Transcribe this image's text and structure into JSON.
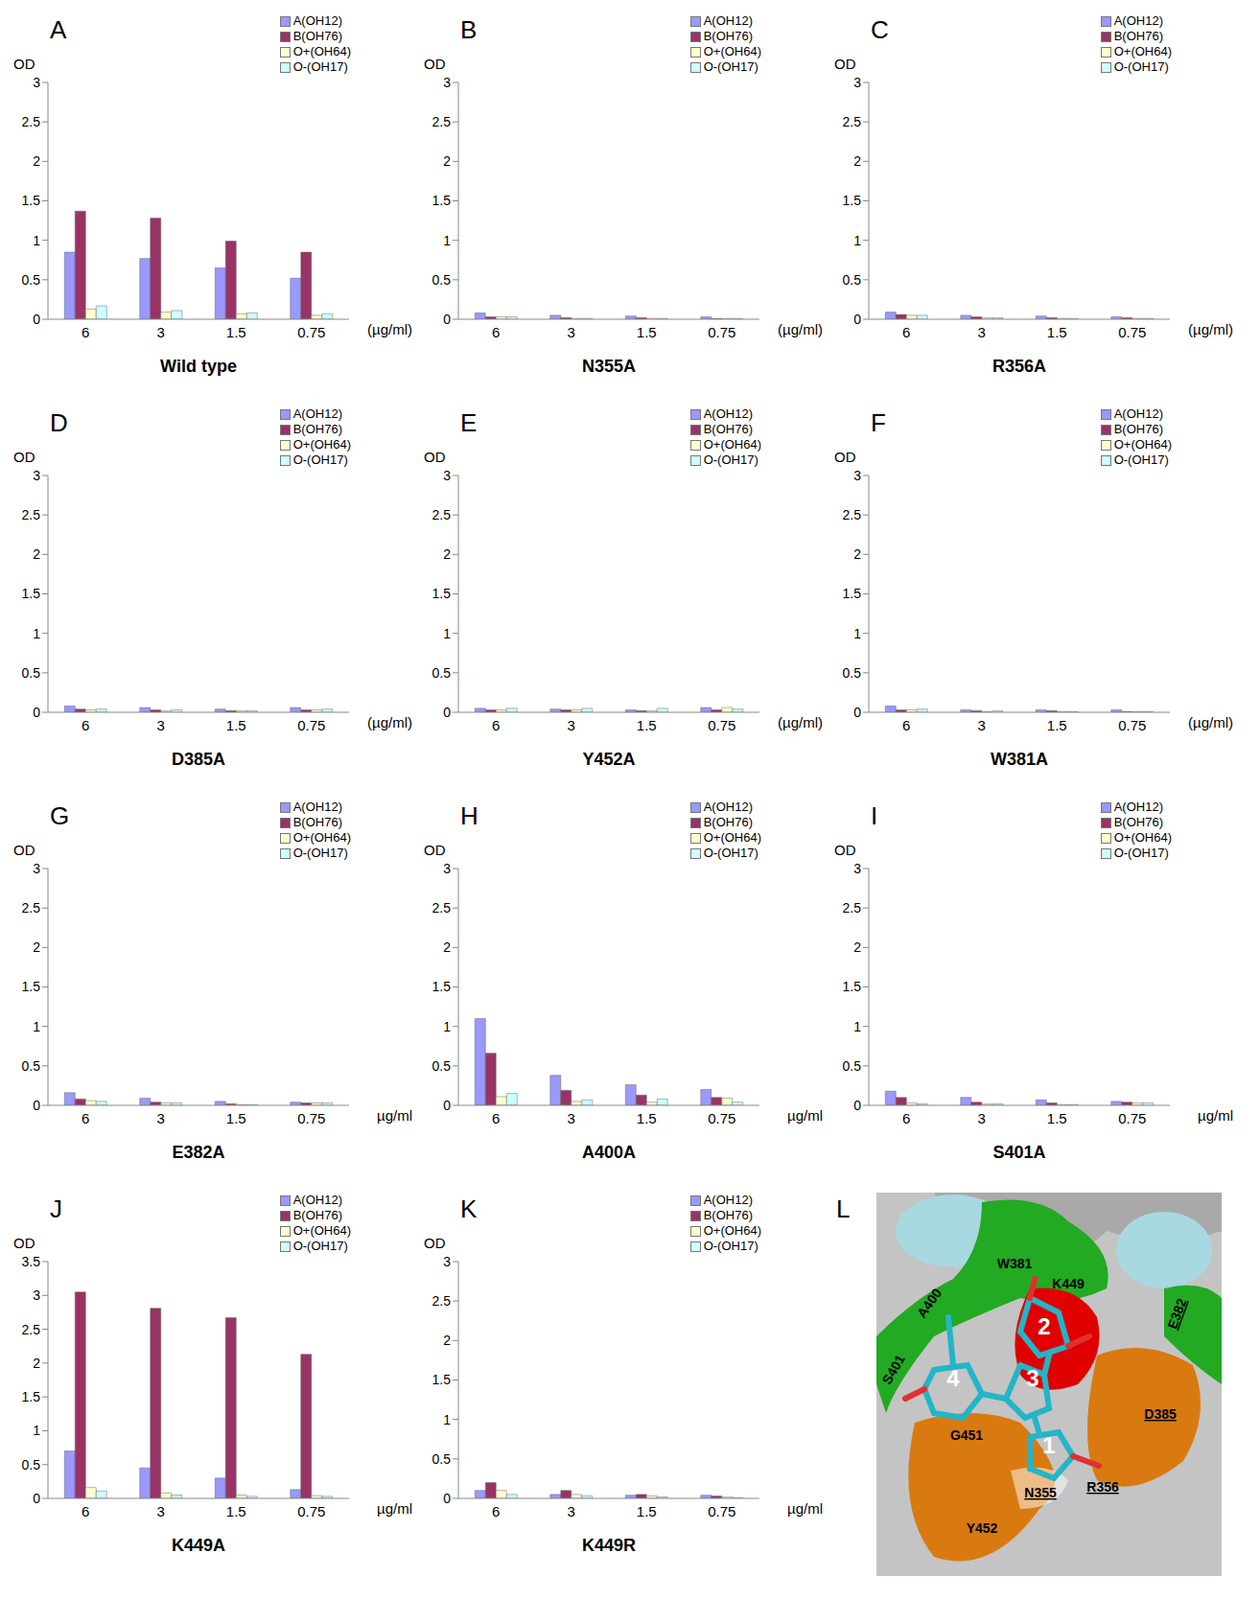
{
  "chart_data": [
    {
      "type": "bar",
      "panel": "A",
      "title": "Wild type",
      "ylabel": "OD",
      "xlabel": "(µg/ml)",
      "categories": [
        "6",
        "3",
        "1.5",
        "0.75"
      ],
      "ylim": [
        0,
        3
      ],
      "yticks": [
        0,
        0.5,
        1,
        1.5,
        2,
        2.5,
        3
      ],
      "legend": "top-right",
      "series": [
        {
          "name": "A(OH12)",
          "color": "#9999ff",
          "values": [
            0.85,
            0.77,
            0.65,
            0.52
          ]
        },
        {
          "name": "B(OH76)",
          "color": "#993366",
          "values": [
            1.37,
            1.28,
            0.99,
            0.85
          ]
        },
        {
          "name": "O+(OH64)",
          "color": "#ffffcc",
          "values": [
            0.13,
            0.09,
            0.07,
            0.05
          ]
        },
        {
          "name": "O-(OH17)",
          "color": "#ccffff",
          "values": [
            0.17,
            0.11,
            0.08,
            0.07
          ]
        }
      ]
    },
    {
      "type": "bar",
      "panel": "B",
      "title": "N355A",
      "ylabel": "OD",
      "xlabel": "(µg/ml)",
      "categories": [
        "6",
        "3",
        "1.5",
        "0.75"
      ],
      "ylim": [
        0,
        3
      ],
      "yticks": [
        0,
        0.5,
        1,
        1.5,
        2,
        2.5,
        3
      ],
      "legend": "top-right",
      "series": [
        {
          "name": "A(OH12)",
          "color": "#9999ff",
          "values": [
            0.08,
            0.05,
            0.04,
            0.03
          ]
        },
        {
          "name": "B(OH76)",
          "color": "#993366",
          "values": [
            0.03,
            0.02,
            0.02,
            0.01
          ]
        },
        {
          "name": "O+(OH64)",
          "color": "#ffffcc",
          "values": [
            0.03,
            0.01,
            0.01,
            0.01
          ]
        },
        {
          "name": "O-(OH17)",
          "color": "#ccffff",
          "values": [
            0.03,
            0.01,
            0.01,
            0.01
          ]
        }
      ]
    },
    {
      "type": "bar",
      "panel": "C",
      "title": "R356A",
      "ylabel": "OD",
      "xlabel": "(µg/ml)",
      "categories": [
        "6",
        "3",
        "1.5",
        "0.75"
      ],
      "ylim": [
        0,
        3
      ],
      "yticks": [
        0,
        0.5,
        1,
        1.5,
        2,
        2.5,
        3
      ],
      "legend": "top-right",
      "series": [
        {
          "name": "A(OH12)",
          "color": "#9999ff",
          "values": [
            0.09,
            0.05,
            0.04,
            0.03
          ]
        },
        {
          "name": "B(OH76)",
          "color": "#993366",
          "values": [
            0.06,
            0.03,
            0.02,
            0.02
          ]
        },
        {
          "name": "O+(OH64)",
          "color": "#ffffcc",
          "values": [
            0.05,
            0.02,
            0.01,
            0.01
          ]
        },
        {
          "name": "O-(OH17)",
          "color": "#ccffff",
          "values": [
            0.05,
            0.02,
            0.01,
            0.01
          ]
        }
      ]
    },
    {
      "type": "bar",
      "panel": "D",
      "title": "D385A",
      "ylabel": "OD",
      "xlabel": "(µg/ml)",
      "categories": [
        "6",
        "3",
        "1.5",
        "0.75"
      ],
      "ylim": [
        0,
        3
      ],
      "yticks": [
        0,
        0.5,
        1,
        1.5,
        2,
        2.5,
        3
      ],
      "legend": "top-right",
      "series": [
        {
          "name": "A(OH12)",
          "color": "#9999ff",
          "values": [
            0.08,
            0.06,
            0.04,
            0.06
          ]
        },
        {
          "name": "B(OH76)",
          "color": "#993366",
          "values": [
            0.04,
            0.03,
            0.02,
            0.03
          ]
        },
        {
          "name": "O+(OH64)",
          "color": "#ffffcc",
          "values": [
            0.03,
            0.02,
            0.02,
            0.03
          ]
        },
        {
          "name": "O-(OH17)",
          "color": "#ccffff",
          "values": [
            0.04,
            0.03,
            0.02,
            0.04
          ]
        }
      ]
    },
    {
      "type": "bar",
      "panel": "E",
      "title": "Y452A",
      "ylabel": "OD",
      "xlabel": "(µg/ml)",
      "categories": [
        "6",
        "3",
        "1.5",
        "0.75"
      ],
      "ylim": [
        0,
        3
      ],
      "yticks": [
        0,
        0.5,
        1,
        1.5,
        2,
        2.5,
        3
      ],
      "legend": "top-right",
      "series": [
        {
          "name": "A(OH12)",
          "color": "#9999ff",
          "values": [
            0.05,
            0.04,
            0.03,
            0.06
          ]
        },
        {
          "name": "B(OH76)",
          "color": "#993366",
          "values": [
            0.03,
            0.03,
            0.02,
            0.03
          ]
        },
        {
          "name": "O+(OH64)",
          "color": "#ffffcc",
          "values": [
            0.03,
            0.03,
            0.02,
            0.06
          ]
        },
        {
          "name": "O-(OH17)",
          "color": "#ccffff",
          "values": [
            0.05,
            0.05,
            0.05,
            0.04
          ]
        }
      ]
    },
    {
      "type": "bar",
      "panel": "F",
      "title": "W381A",
      "ylabel": "OD",
      "xlabel": "(µg/ml)",
      "categories": [
        "6",
        "3",
        "1.5",
        "0.75"
      ],
      "ylim": [
        0,
        3
      ],
      "yticks": [
        0,
        0.5,
        1,
        1.5,
        2,
        2.5,
        3
      ],
      "legend": "top-right",
      "series": [
        {
          "name": "A(OH12)",
          "color": "#9999ff",
          "values": [
            0.08,
            0.03,
            0.03,
            0.03
          ]
        },
        {
          "name": "B(OH76)",
          "color": "#993366",
          "values": [
            0.03,
            0.02,
            0.02,
            0.01
          ]
        },
        {
          "name": "O+(OH64)",
          "color": "#ffffcc",
          "values": [
            0.03,
            0.01,
            0.01,
            0.01
          ]
        },
        {
          "name": "O-(OH17)",
          "color": "#ccffff",
          "values": [
            0.04,
            0.02,
            0.01,
            0.01
          ]
        }
      ]
    },
    {
      "type": "bar",
      "panel": "G",
      "title": "E382A",
      "ylabel": "OD",
      "xlabel": "µg/ml",
      "categories": [
        "6",
        "3",
        "1.5",
        "0.75"
      ],
      "ylim": [
        0,
        3
      ],
      "yticks": [
        0,
        0.5,
        1,
        1.5,
        2,
        2.5,
        3
      ],
      "legend": "top-right",
      "series": [
        {
          "name": "A(OH12)",
          "color": "#9999ff",
          "values": [
            0.16,
            0.09,
            0.05,
            0.04
          ]
        },
        {
          "name": "B(OH76)",
          "color": "#993366",
          "values": [
            0.08,
            0.04,
            0.02,
            0.03
          ]
        },
        {
          "name": "O+(OH64)",
          "color": "#ffffcc",
          "values": [
            0.06,
            0.03,
            0.01,
            0.03
          ]
        },
        {
          "name": "O-(OH17)",
          "color": "#ccffff",
          "values": [
            0.05,
            0.03,
            0.01,
            0.03
          ]
        }
      ]
    },
    {
      "type": "bar",
      "panel": "H",
      "title": "A400A",
      "ylabel": "OD",
      "xlabel": "µg/ml",
      "categories": [
        "6",
        "3",
        "1.5",
        "0.75"
      ],
      "ylim": [
        0,
        3
      ],
      "yticks": [
        0,
        0.5,
        1,
        1.5,
        2,
        2.5,
        3
      ],
      "legend": "top-right",
      "series": [
        {
          "name": "A(OH12)",
          "color": "#9999ff",
          "values": [
            1.1,
            0.38,
            0.26,
            0.2
          ]
        },
        {
          "name": "B(OH76)",
          "color": "#993366",
          "values": [
            0.66,
            0.19,
            0.13,
            0.1
          ]
        },
        {
          "name": "O+(OH64)",
          "color": "#ffffcc",
          "values": [
            0.11,
            0.05,
            0.04,
            0.09
          ]
        },
        {
          "name": "O-(OH17)",
          "color": "#ccffff",
          "values": [
            0.15,
            0.07,
            0.08,
            0.04
          ]
        }
      ]
    },
    {
      "type": "bar",
      "panel": "I",
      "title": "S401A",
      "ylabel": "OD",
      "xlabel": "µg/ml",
      "categories": [
        "6",
        "3",
        "1.5",
        "0.75"
      ],
      "ylim": [
        0,
        3
      ],
      "yticks": [
        0,
        0.5,
        1,
        1.5,
        2,
        2.5,
        3
      ],
      "legend": "top-right",
      "series": [
        {
          "name": "A(OH12)",
          "color": "#9999ff",
          "values": [
            0.18,
            0.1,
            0.07,
            0.05
          ]
        },
        {
          "name": "B(OH76)",
          "color": "#993366",
          "values": [
            0.1,
            0.04,
            0.03,
            0.04
          ]
        },
        {
          "name": "O+(OH64)",
          "color": "#ffffcc",
          "values": [
            0.03,
            0.02,
            0.01,
            0.03
          ]
        },
        {
          "name": "O-(OH17)",
          "color": "#ccffff",
          "values": [
            0.02,
            0.02,
            0.01,
            0.03
          ]
        }
      ]
    },
    {
      "type": "bar",
      "panel": "J",
      "title": "K449A",
      "ylabel": "OD",
      "xlabel": "µg/ml",
      "categories": [
        "6",
        "3",
        "1.5",
        "0.75"
      ],
      "ylim": [
        0,
        3.5
      ],
      "yticks": [
        0,
        0.5,
        1,
        1.5,
        2,
        2.5,
        3,
        3.5
      ],
      "legend": "top-right",
      "series": [
        {
          "name": "A(OH12)",
          "color": "#9999ff",
          "values": [
            0.7,
            0.45,
            0.3,
            0.13
          ]
        },
        {
          "name": "B(OH76)",
          "color": "#993366",
          "values": [
            3.05,
            2.81,
            2.67,
            2.13
          ]
        },
        {
          "name": "O+(OH64)",
          "color": "#ffffcc",
          "values": [
            0.16,
            0.08,
            0.05,
            0.04
          ]
        },
        {
          "name": "O-(OH17)",
          "color": "#ccffff",
          "values": [
            0.11,
            0.05,
            0.03,
            0.03
          ]
        }
      ]
    },
    {
      "type": "bar",
      "panel": "K",
      "title": "K449R",
      "ylabel": "OD",
      "xlabel": "µg/ml",
      "categories": [
        "6",
        "3",
        "1.5",
        "0.75"
      ],
      "ylim": [
        0,
        3
      ],
      "yticks": [
        0,
        0.5,
        1,
        1.5,
        2,
        2.5,
        3
      ],
      "legend": "top-right",
      "series": [
        {
          "name": "A(OH12)",
          "color": "#9999ff",
          "values": [
            0.1,
            0.05,
            0.04,
            0.04
          ]
        },
        {
          "name": "B(OH76)",
          "color": "#993366",
          "values": [
            0.2,
            0.1,
            0.05,
            0.03
          ]
        },
        {
          "name": "O+(OH64)",
          "color": "#ffffcc",
          "values": [
            0.1,
            0.05,
            0.03,
            0.02
          ]
        },
        {
          "name": "O-(OH17)",
          "color": "#ccffff",
          "values": [
            0.05,
            0.03,
            0.02,
            0.01
          ]
        }
      ]
    }
  ],
  "structure": {
    "panel": "L",
    "labels": [
      {
        "text": "W381",
        "underline": false
      },
      {
        "text": "K449",
        "underline": false
      },
      {
        "text": "A400",
        "underline": false
      },
      {
        "text": "E382",
        "underline": true
      },
      {
        "text": "S401",
        "underline": false
      },
      {
        "text": "D385",
        "underline": true
      },
      {
        "text": "G451",
        "underline": false
      },
      {
        "text": "N355",
        "underline": true
      },
      {
        "text": "R356",
        "underline": true
      },
      {
        "text": "Y452",
        "underline": false
      }
    ],
    "rings": [
      "1",
      "2",
      "3",
      "4"
    ]
  }
}
